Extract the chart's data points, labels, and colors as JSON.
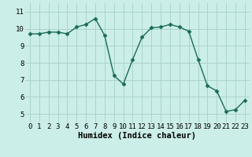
{
  "x": [
    0,
    1,
    2,
    3,
    4,
    5,
    6,
    7,
    8,
    9,
    10,
    11,
    12,
    13,
    14,
    15,
    16,
    17,
    18,
    19,
    20,
    21,
    22,
    23
  ],
  "y": [
    9.7,
    9.7,
    9.8,
    9.8,
    9.7,
    10.1,
    10.25,
    10.6,
    9.6,
    7.25,
    6.75,
    8.2,
    9.5,
    10.05,
    10.1,
    10.25,
    10.1,
    9.85,
    8.2,
    6.65,
    6.35,
    5.15,
    5.25,
    5.8
  ],
  "line_color": "#1a6b5a",
  "marker": "D",
  "marker_size": 2.5,
  "bg_color": "#cceee8",
  "grid_color": "#aad4cc",
  "xlabel": "Humidex (Indice chaleur)",
  "ylabel": "",
  "ylim": [
    4.5,
    11.5
  ],
  "xlim": [
    -0.5,
    23.5
  ],
  "yticks": [
    5,
    6,
    7,
    8,
    9,
    10,
    11
  ],
  "xticks": [
    0,
    1,
    2,
    3,
    4,
    5,
    6,
    7,
    8,
    9,
    10,
    11,
    12,
    13,
    14,
    15,
    16,
    17,
    18,
    19,
    20,
    21,
    22,
    23
  ],
  "tick_fontsize": 6.5,
  "xlabel_fontsize": 7.5,
  "linewidth": 1.0
}
